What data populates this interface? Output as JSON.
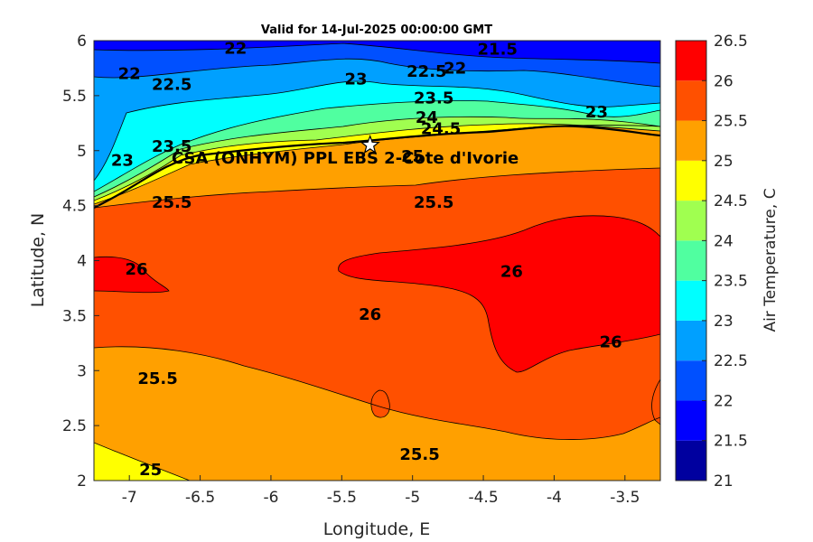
{
  "title": "Valid for 14-Jul-2025 00:00:00 GMT",
  "site_label": "CSA (ONHYM) PPL EBS 2-Cote d'Ivorie",
  "site_marker": {
    "lon": -5.3,
    "lat": 5.05,
    "icon": "star-icon"
  },
  "chart_data": {
    "type": "heatmap",
    "xlabel": "Longitude, E",
    "ylabel": "Latitude, N",
    "xlim": [
      -7.25,
      -3.25
    ],
    "ylim": [
      2,
      6
    ],
    "xticks": [
      -7,
      -6.5,
      -6,
      -5.5,
      -5,
      -4.5,
      -4,
      -3.5
    ],
    "yticks": [
      2,
      2.5,
      3,
      3.5,
      4,
      4.5,
      5,
      5.5,
      6
    ],
    "colorbar": {
      "label": "Air Temperature, C",
      "levels": [
        21,
        21.5,
        22,
        22.5,
        23,
        23.5,
        24,
        24.5,
        25,
        25.5,
        26,
        26.5
      ],
      "colors": [
        "#00009f",
        "#0000ff",
        "#0050ff",
        "#00a0ff",
        "#00ffff",
        "#50ffa0",
        "#a0ff50",
        "#ffff00",
        "#ffa000",
        "#ff5000",
        "#ff0000",
        "#a00000"
      ]
    },
    "contour_labels": [
      {
        "text": "22",
        "lon": -6.25,
        "lat": 5.93
      },
      {
        "text": "22",
        "lon": -7.0,
        "lat": 5.7
      },
      {
        "text": "22.5",
        "lon": -6.7,
        "lat": 5.6
      },
      {
        "text": "21.5",
        "lon": -4.4,
        "lat": 5.92
      },
      {
        "text": "23",
        "lon": -5.4,
        "lat": 5.65
      },
      {
        "text": "22.5",
        "lon": -4.9,
        "lat": 5.72
      },
      {
        "text": "22",
        "lon": -4.7,
        "lat": 5.75
      },
      {
        "text": "23.5",
        "lon": -4.85,
        "lat": 5.48
      },
      {
        "text": "24",
        "lon": -4.9,
        "lat": 5.3
      },
      {
        "text": "24.5",
        "lon": -4.8,
        "lat": 5.2
      },
      {
        "text": "23",
        "lon": -3.7,
        "lat": 5.35
      },
      {
        "text": "23",
        "lon": -7.05,
        "lat": 4.91
      },
      {
        "text": "23.5",
        "lon": -6.7,
        "lat": 5.04
      },
      {
        "text": "25",
        "lon": -5.0,
        "lat": 4.95
      },
      {
        "text": "25.5",
        "lon": -4.85,
        "lat": 4.53
      },
      {
        "text": "25.5",
        "lon": -6.7,
        "lat": 4.53
      },
      {
        "text": "26",
        "lon": -6.95,
        "lat": 3.92
      },
      {
        "text": "26",
        "lon": -5.3,
        "lat": 3.51
      },
      {
        "text": "26",
        "lon": -4.3,
        "lat": 3.9
      },
      {
        "text": "26",
        "lon": -3.6,
        "lat": 3.26
      },
      {
        "text": "25.5",
        "lon": -6.8,
        "lat": 2.93
      },
      {
        "text": "25.5",
        "lon": -4.95,
        "lat": 2.24
      },
      {
        "text": "25",
        "lon": -6.85,
        "lat": 2.1
      }
    ]
  }
}
